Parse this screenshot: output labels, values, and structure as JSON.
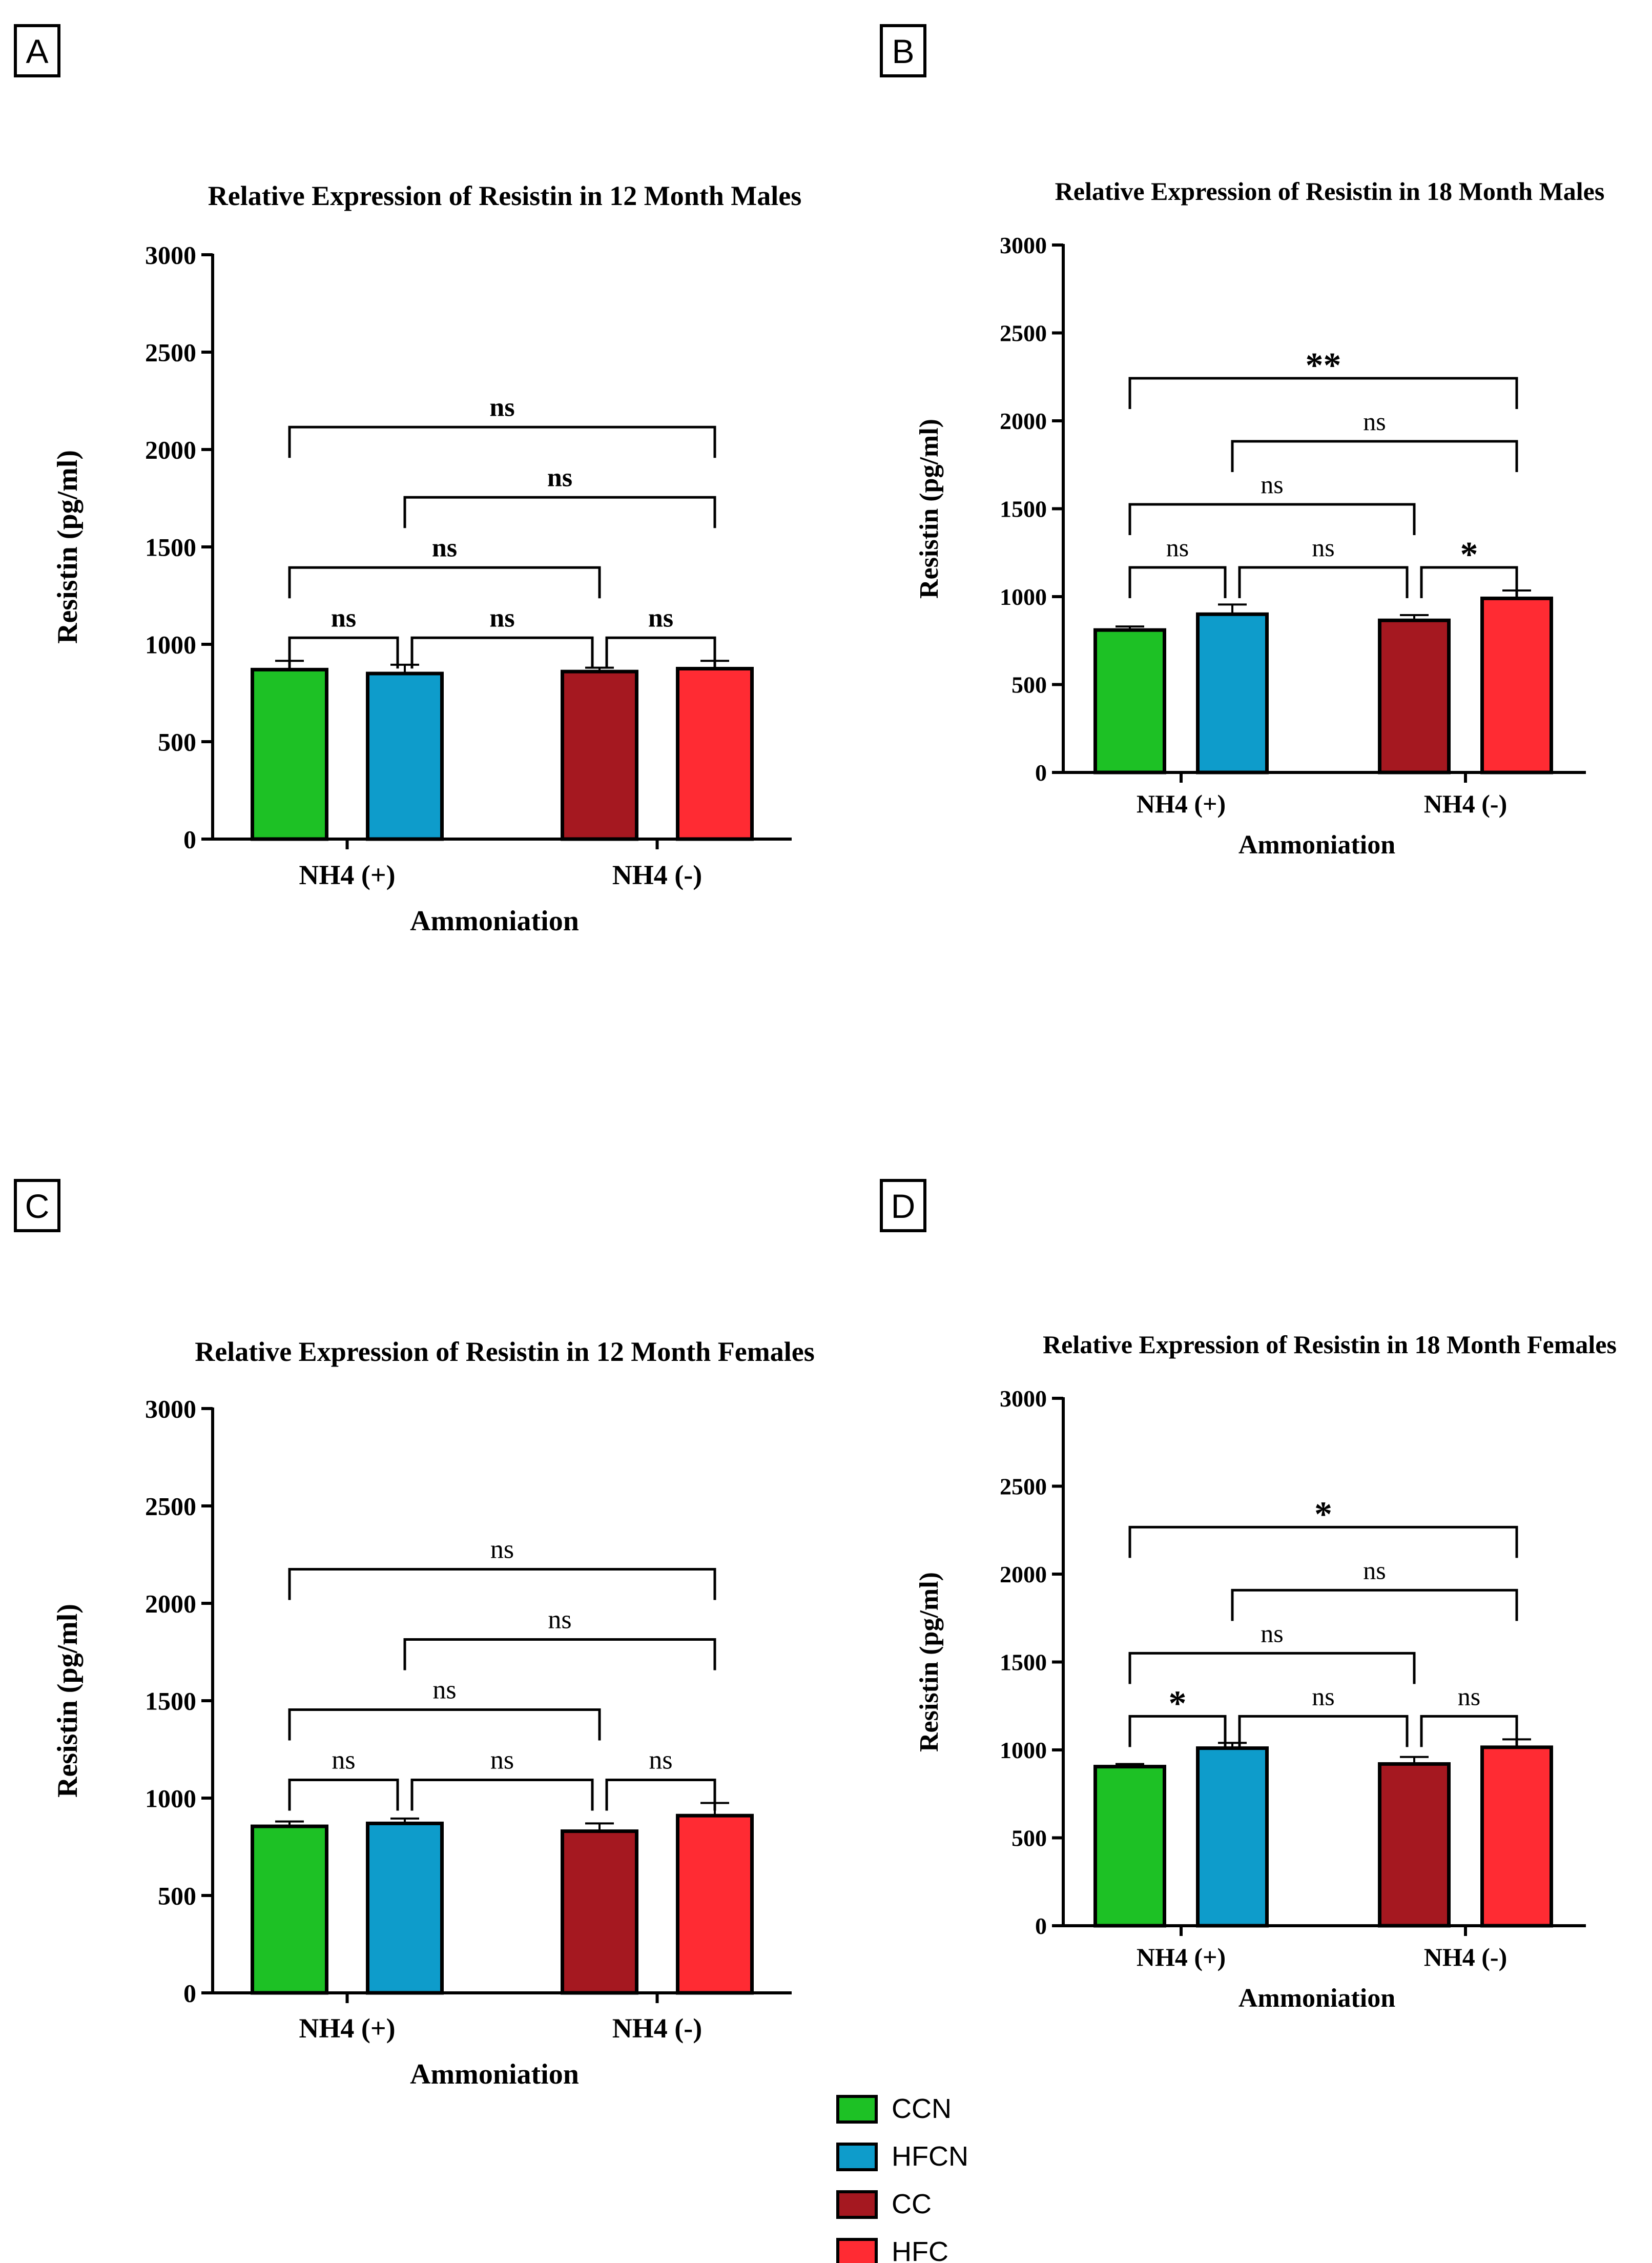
{
  "chart_data": [
    {
      "panel": "A",
      "type": "bar",
      "title": "Relative Expression of Resistin in 12 Month Males",
      "xlabel": "Ammoniation",
      "ylabel": "Resistin (pg/ml)",
      "ylim": [
        0,
        3000
      ],
      "yticks": [
        "0",
        "500",
        "1000",
        "1500",
        "2000",
        "2500",
        "3000"
      ],
      "groups": [
        "NH4 (+)",
        "NH4 (-)"
      ],
      "bars": [
        {
          "series": "CCN",
          "group": "NH4 (+)",
          "value": 870,
          "err": 45
        },
        {
          "series": "HFCN",
          "group": "NH4 (+)",
          "value": 850,
          "err": 45
        },
        {
          "series": "CC",
          "group": "NH4 (-)",
          "value": 860,
          "err": 20
        },
        {
          "series": "HFC",
          "group": "NH4 (-)",
          "value": 875,
          "err": 40
        }
      ],
      "comparisons": [
        {
          "from": 0,
          "to": 1,
          "label": "ns",
          "level": 1
        },
        {
          "from": 1,
          "to": 2,
          "label": "ns",
          "level": 1
        },
        {
          "from": 2,
          "to": 3,
          "label": "ns",
          "level": 1
        },
        {
          "from": 0,
          "to": 2,
          "label": "ns",
          "level": 2
        },
        {
          "from": 1,
          "to": 3,
          "label": "ns",
          "level": 3
        },
        {
          "from": 0,
          "to": 3,
          "label": "ns",
          "level": 4
        }
      ]
    },
    {
      "panel": "B",
      "type": "bar",
      "title": "Relative Expression of Resistin in 18 Month Males",
      "xlabel": "Ammoniation",
      "ylabel": "Resistin (pg/ml)",
      "ylim": [
        0,
        3000
      ],
      "yticks": [
        "0",
        "500",
        "1000",
        "1500",
        "2000",
        "2500",
        "3000"
      ],
      "groups": [
        "NH4 (+)",
        "NH4 (-)"
      ],
      "bars": [
        {
          "series": "CCN",
          "group": "NH4 (+)",
          "value": 810,
          "err": 20
        },
        {
          "series": "HFCN",
          "group": "NH4 (+)",
          "value": 900,
          "err": 55
        },
        {
          "series": "CC",
          "group": "NH4 (-)",
          "value": 865,
          "err": 30
        },
        {
          "series": "HFC",
          "group": "NH4 (-)",
          "value": 990,
          "err": 45
        }
      ],
      "comparisons": [
        {
          "from": 0,
          "to": 1,
          "label": "ns",
          "level": 1
        },
        {
          "from": 1,
          "to": 2,
          "label": "ns",
          "level": 1
        },
        {
          "from": 2,
          "to": 3,
          "label": "*",
          "level": 1
        },
        {
          "from": 0,
          "to": 2,
          "label": "ns",
          "level": 2
        },
        {
          "from": 1,
          "to": 3,
          "label": "ns",
          "level": 3
        },
        {
          "from": 0,
          "to": 3,
          "label": "**",
          "level": 4
        }
      ]
    },
    {
      "panel": "C",
      "type": "bar",
      "title": "Relative Expression of Resistin in 12 Month Females",
      "xlabel": "Ammoniation",
      "ylabel": "Resistin (pg/ml)",
      "ylim": [
        0,
        3000
      ],
      "yticks": [
        "0",
        "500",
        "1000",
        "1500",
        "2000",
        "2500",
        "3000"
      ],
      "groups": [
        "NH4 (+)",
        "NH4 (-)"
      ],
      "bars": [
        {
          "series": "CCN",
          "group": "NH4 (+)",
          "value": 855,
          "err": 25
        },
        {
          "series": "HFCN",
          "group": "NH4 (+)",
          "value": 870,
          "err": 25
        },
        {
          "series": "CC",
          "group": "NH4 (-)",
          "value": 830,
          "err": 40
        },
        {
          "series": "HFC",
          "group": "NH4 (-)",
          "value": 910,
          "err": 65
        }
      ],
      "comparisons": [
        {
          "from": 0,
          "to": 1,
          "label": "ns",
          "level": 1
        },
        {
          "from": 1,
          "to": 2,
          "label": "ns",
          "level": 1
        },
        {
          "from": 2,
          "to": 3,
          "label": "ns",
          "level": 1
        },
        {
          "from": 0,
          "to": 2,
          "label": "ns",
          "level": 2
        },
        {
          "from": 1,
          "to": 3,
          "label": "ns",
          "level": 3
        },
        {
          "from": 0,
          "to": 3,
          "label": "ns",
          "level": 4
        }
      ]
    },
    {
      "panel": "D",
      "type": "bar",
      "title": "Relative Expression of Resistin in 18 Month Females",
      "xlabel": "Ammoniation",
      "ylabel": "Resistin (pg/ml)",
      "ylim": [
        0,
        3000
      ],
      "yticks": [
        "0",
        "500",
        "1000",
        "1500",
        "2000",
        "2500",
        "3000"
      ],
      "groups": [
        "NH4 (+)",
        "NH4 (-)"
      ],
      "bars": [
        {
          "series": "CCN",
          "group": "NH4 (+)",
          "value": 905,
          "err": 15
        },
        {
          "series": "HFCN",
          "group": "NH4 (+)",
          "value": 1010,
          "err": 30
        },
        {
          "series": "CC",
          "group": "NH4 (-)",
          "value": 920,
          "err": 40
        },
        {
          "series": "HFC",
          "group": "NH4 (-)",
          "value": 1015,
          "err": 45
        }
      ],
      "comparisons": [
        {
          "from": 0,
          "to": 1,
          "label": "*",
          "level": 1
        },
        {
          "from": 1,
          "to": 2,
          "label": "ns",
          "level": 1
        },
        {
          "from": 2,
          "to": 3,
          "label": "ns",
          "level": 1
        },
        {
          "from": 0,
          "to": 2,
          "label": "ns",
          "level": 2
        },
        {
          "from": 1,
          "to": 3,
          "label": "ns",
          "level": 3
        },
        {
          "from": 0,
          "to": 3,
          "label": "*",
          "level": 4
        }
      ]
    }
  ],
  "legend": [
    {
      "name": "CCN",
      "color": "#1DC125"
    },
    {
      "name": "HFCN",
      "color": "#0E9CCB"
    },
    {
      "name": "CC",
      "color": "#A51820"
    },
    {
      "name": "HFC",
      "color": "#FF2B33"
    }
  ]
}
